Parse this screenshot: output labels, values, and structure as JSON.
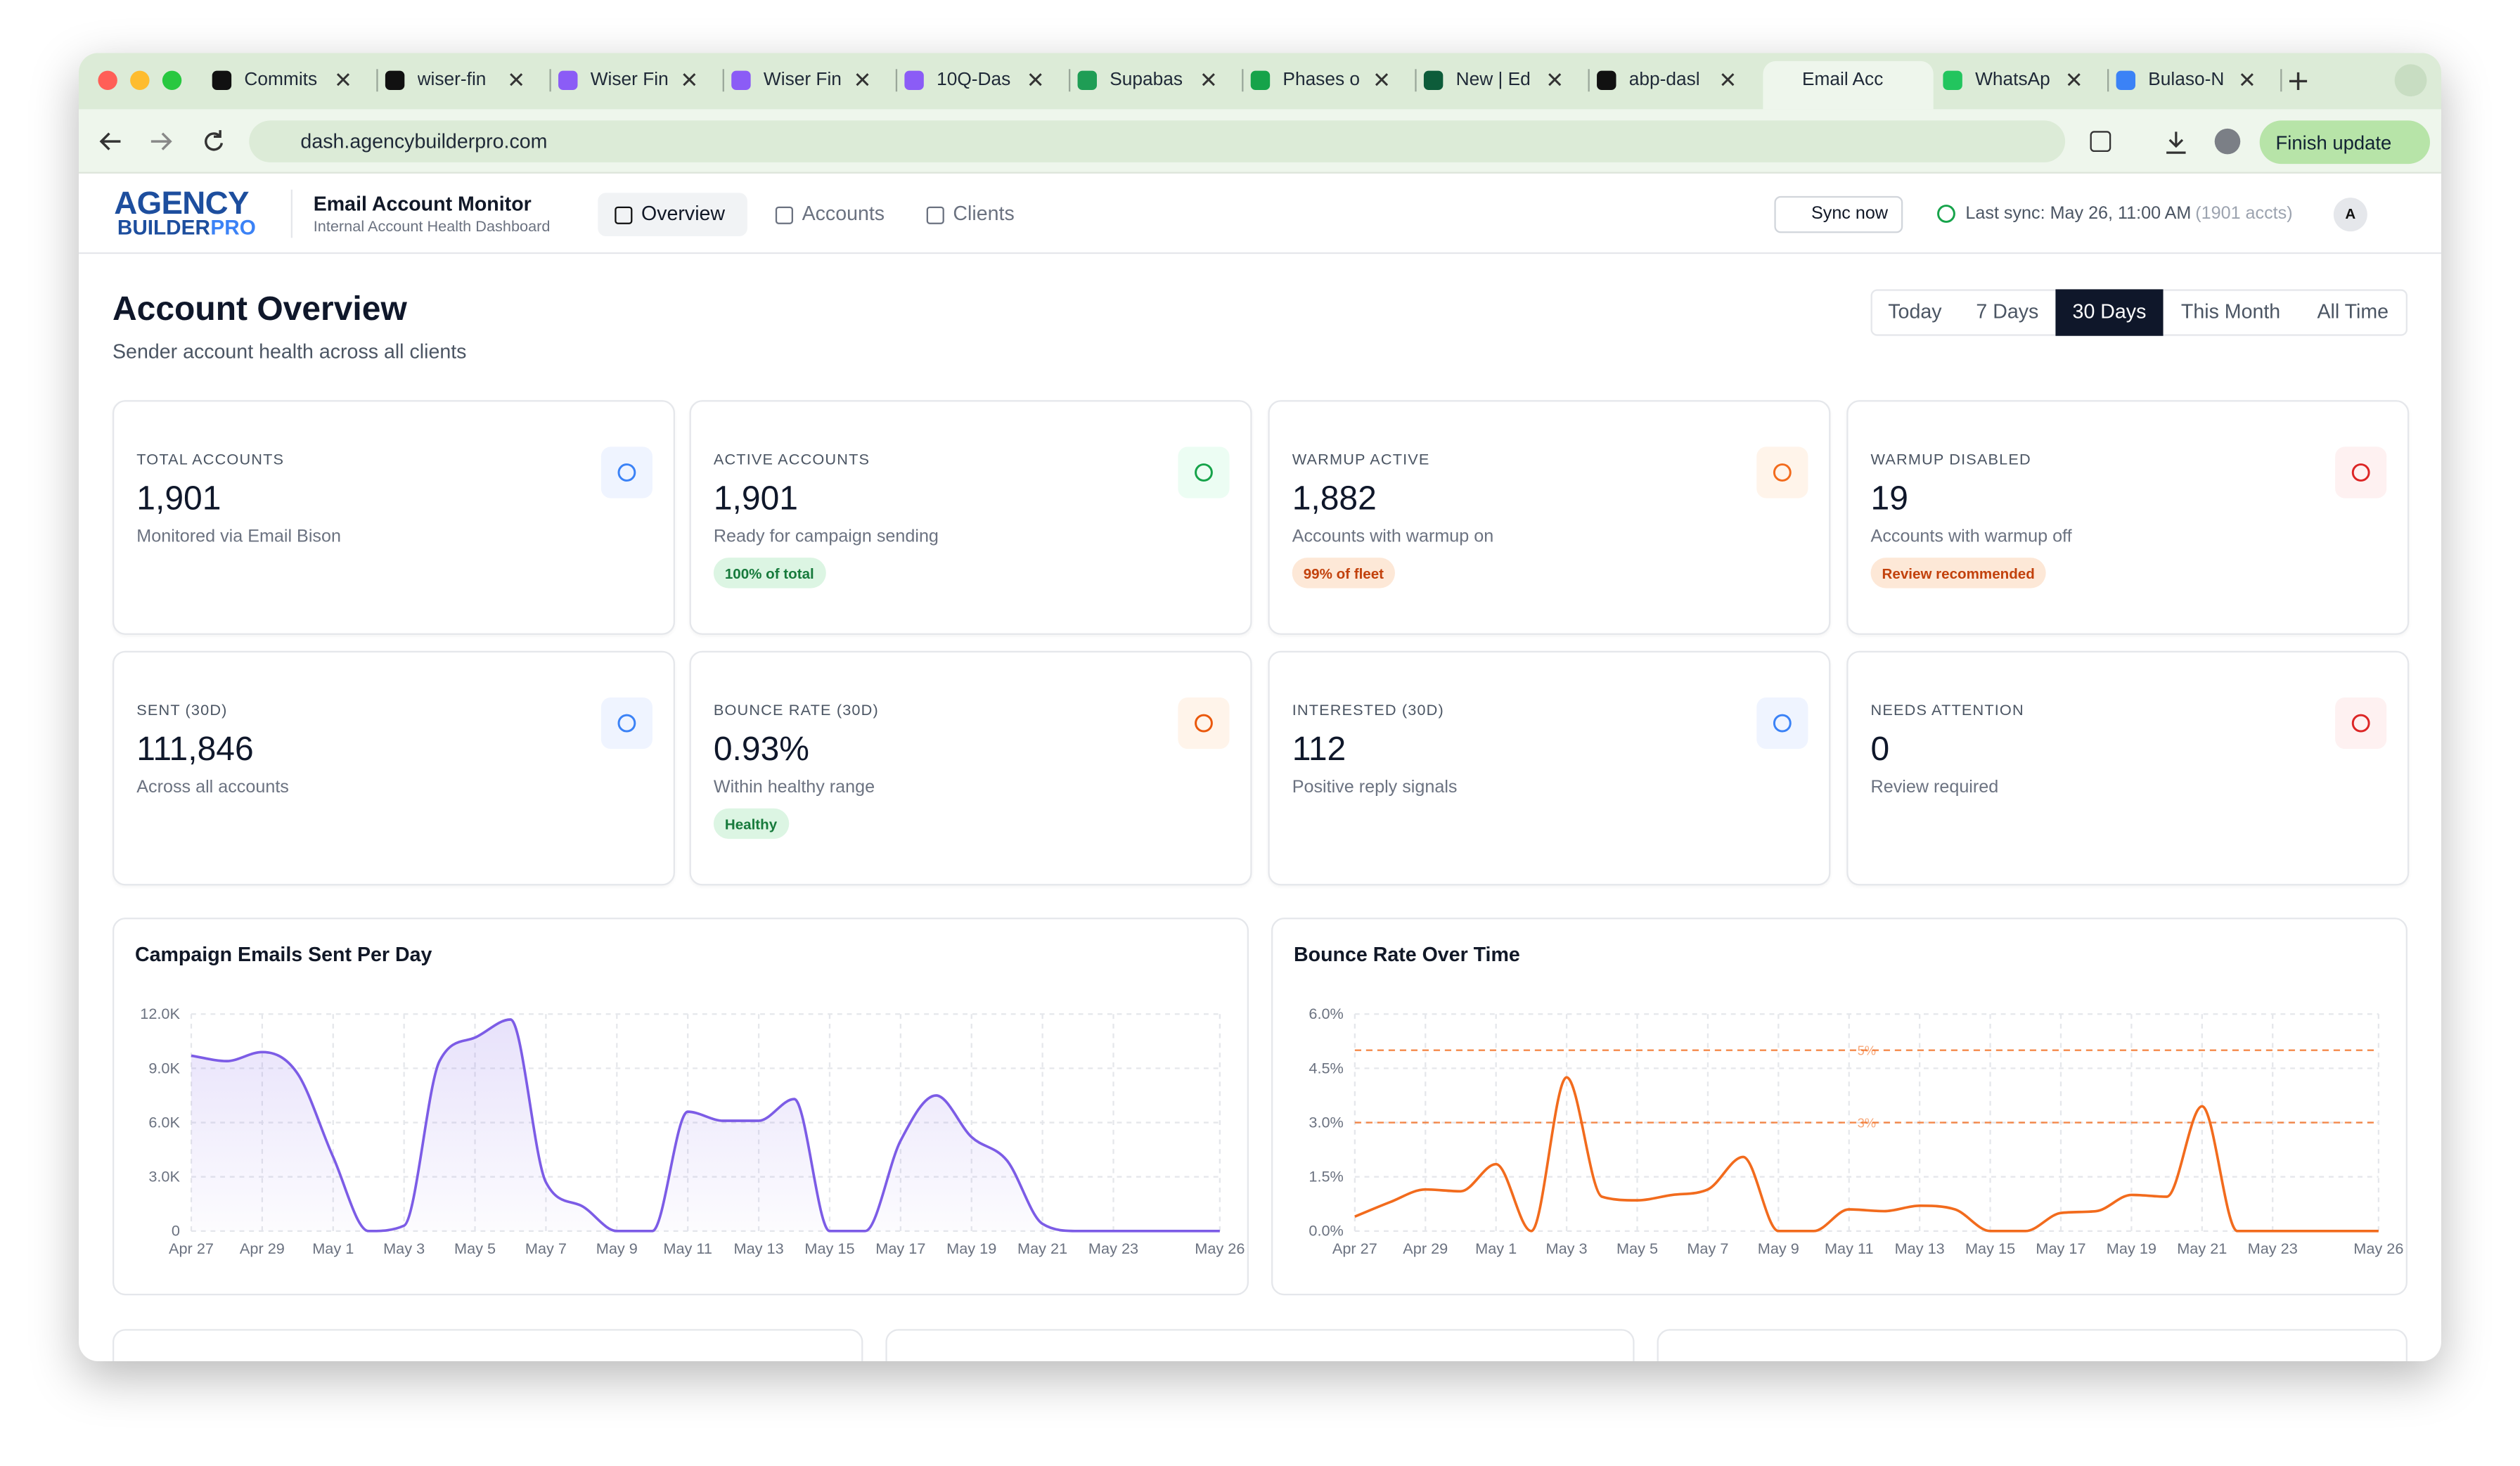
{
  "browser": {
    "tabs": [
      "Commits",
      "wiser-fin",
      "Wiser Fin",
      "Wiser Fin",
      "10Q-Das",
      "Supabas",
      "Phases o",
      "New | Ed",
      "abp-dasl",
      "Email Acc",
      "WhatsAp",
      "Bulaso-N"
    ],
    "active_tab": 9,
    "url": "dash.agencybuilderpro.com",
    "update_button": "Finish update"
  },
  "header": {
    "logo_top": "AGENCY",
    "logo_bottom": "BUILDER",
    "logo_accent": "PRO",
    "app_title": "Email Account Monitor",
    "app_subtitle": "Internal Account Health Dashboard",
    "nav": [
      "Overview",
      "Accounts",
      "Clients"
    ],
    "active_nav": 0,
    "sync_button": "Sync now",
    "last_sync": "Last sync: May 26, 11:00 AM",
    "accounts_note": "(1901 accts)",
    "avatar": "A"
  },
  "page": {
    "title": "Account Overview",
    "subtitle": "Sender account health across all clients",
    "ranges": [
      "Today",
      "7 Days",
      "30 Days",
      "This Month",
      "All Time"
    ],
    "active_range": 2
  },
  "cards": [
    {
      "label": "TOTAL ACCOUNTS",
      "value": "1,901",
      "note": "Monitored via Email Bison"
    },
    {
      "label": "ACTIVE ACCOUNTS",
      "value": "1,901",
      "note": "Ready for campaign sending",
      "badge": "100% of total"
    },
    {
      "label": "WARMUP ACTIVE",
      "value": "1,882",
      "note": "Accounts with warmup on",
      "badge": "99% of fleet"
    },
    {
      "label": "WARMUP DISABLED",
      "value": "19",
      "note": "Accounts with warmup off",
      "badge": "Review recommended"
    },
    {
      "label": "SENT (30D)",
      "value": "111,846",
      "note": "Across all accounts"
    },
    {
      "label": "BOUNCE RATE (30D)",
      "value": "0.93%",
      "note": "Within healthy range",
      "badge": "Healthy"
    },
    {
      "label": "INTERESTED (30D)",
      "value": "112",
      "note": "Positive reply signals"
    },
    {
      "label": "NEEDS ATTENTION",
      "value": "0",
      "note": "Review required"
    }
  ],
  "chart_data": [
    {
      "type": "line",
      "title": "Campaign Emails Sent Per Day",
      "categories": [
        "Apr 27",
        null,
        "Apr 29",
        null,
        "May 1",
        null,
        "May 3",
        null,
        "May 5",
        null,
        "May 7",
        null,
        "May 9",
        null,
        "May 11",
        null,
        "May 13",
        null,
        "May 15",
        null,
        "May 17",
        null,
        "May 19",
        null,
        "May 21",
        null,
        "May 23",
        null,
        null,
        "May 26"
      ],
      "values": [
        9700,
        9400,
        9900,
        8700,
        4100,
        0,
        300,
        9400,
        10700,
        11700,
        2700,
        1400,
        0,
        0,
        6600,
        6100,
        6100,
        7300,
        0,
        0,
        5000,
        7500,
        5200,
        3900,
        400,
        0,
        0,
        0,
        0,
        0
      ],
      "color": "#7c5ce6",
      "fill_area": true,
      "ylim": [
        0,
        12000
      ],
      "yticks": [
        0,
        {
          "value": 3000,
          "label": "3.0K"
        },
        {
          "value": 6000,
          "label": "6.0K"
        },
        {
          "value": 9000,
          "label": "9.0K"
        },
        {
          "value": 12000,
          "label": "12.0K"
        }
      ],
      "grid": true
    },
    {
      "type": "line",
      "title": "Bounce Rate Over Time",
      "categories": [
        "Apr 27",
        null,
        "Apr 29",
        null,
        "May 1",
        null,
        "May 3",
        null,
        "May 5",
        null,
        "May 7",
        null,
        "May 9",
        null,
        "May 11",
        null,
        "May 13",
        null,
        "May 15",
        null,
        "May 17",
        null,
        "May 19",
        null,
        "May 21",
        null,
        "May 23",
        null,
        null,
        "May 26"
      ],
      "values": [
        0.4,
        0.8,
        1.15,
        1.1,
        1.85,
        0,
        4.25,
        0.95,
        0.85,
        1.0,
        1.15,
        2.05,
        0,
        0,
        0.6,
        0.55,
        0.7,
        0.6,
        0,
        0,
        0.5,
        0.55,
        1.0,
        0.95,
        3.45,
        0,
        0,
        0,
        0,
        0
      ],
      "color": "#f26b1d",
      "fill_area": false,
      "ylim": [
        0,
        6
      ],
      "yticks": [
        {
          "value": 0,
          "label": "0.0%"
        },
        {
          "value": 1.5,
          "label": "1.5%"
        },
        {
          "value": 3,
          "label": "3.0%"
        },
        {
          "value": 4.5,
          "label": "4.5%"
        },
        {
          "value": 6,
          "label": "6.0%"
        }
      ],
      "grid": true,
      "reference_lines": [
        {
          "value": 5,
          "label": "5%"
        },
        {
          "value": 3,
          "label": "3%"
        }
      ]
    }
  ]
}
